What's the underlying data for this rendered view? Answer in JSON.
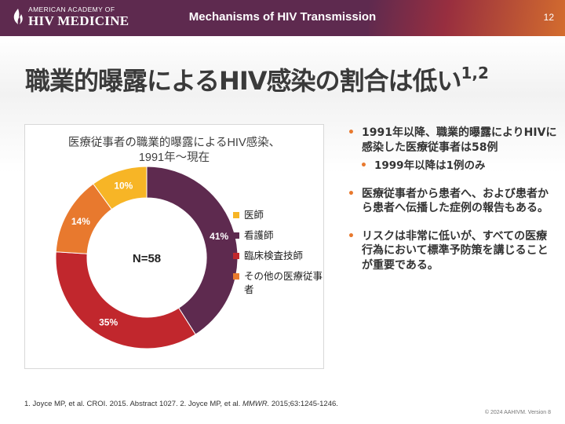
{
  "header": {
    "logo_top": "AMERICAN ACADEMY OF",
    "logo_main": "HIV MEDICINE",
    "title": "Mechanisms of HIV Transmission",
    "page_number": "12",
    "background_color": "#5e2a4f"
  },
  "slide_title": {
    "text": "職業的曝露によるHIV感染の割合は低い",
    "superscript": "1,2"
  },
  "chart_data": {
    "type": "pie",
    "title_line1": "医療従事者の職業的曝露によるHIV感染、",
    "title_line2": "1991年～現在",
    "center_label": "N=58",
    "slices": [
      {
        "name": "看護師",
        "value": 41,
        "label": "41%",
        "color": "#5e2a4f",
        "label_color": "#ffffff"
      },
      {
        "name": "臨床検査技師",
        "value": 35,
        "label": "35%",
        "color": "#c1272d",
        "label_color": "#ffffff"
      },
      {
        "name": "その他の医療従事者",
        "value": 14,
        "label": "14%",
        "color": "#e8792e",
        "label_color": "#ffffff"
      },
      {
        "name": "医師",
        "value": 10,
        "label": "10%",
        "color": "#f7b526",
        "label_color": "#ffffff"
      }
    ],
    "legend": [
      {
        "label": "医師",
        "color": "#f7b526"
      },
      {
        "label": "看護師",
        "color": "#5e2a4f"
      },
      {
        "label": "臨床検査技師",
        "color": "#c1272d"
      },
      {
        "label": "その他の医療従事者",
        "color": "#e8792e"
      }
    ],
    "legend_position": "right"
  },
  "bullets": [
    {
      "text": "1991年以降、職業的曝露によりHIVに感染した医療従事者は58例",
      "level": 1
    },
    {
      "text": "1999年以降は1例のみ",
      "level": 2
    },
    {
      "text": "医療従事者から患者へ、および患者から患者へ伝播した症例の報告もある。",
      "level": 1
    },
    {
      "text": "リスクは非常に低いが、すべての医療行為において標準予防策を講じることが重要である。",
      "level": 1
    }
  ],
  "bullet_glyph": "•",
  "footnote": {
    "part1": "1. Joyce MP, et al. CROI. 2015. Abstract 1027. 2. Joyce MP, et al. ",
    "part2_italic": "MMWR.",
    "part3": " 2015;63:1245-1246."
  },
  "copyright": "© 2024 AAHIVM. Version 8"
}
